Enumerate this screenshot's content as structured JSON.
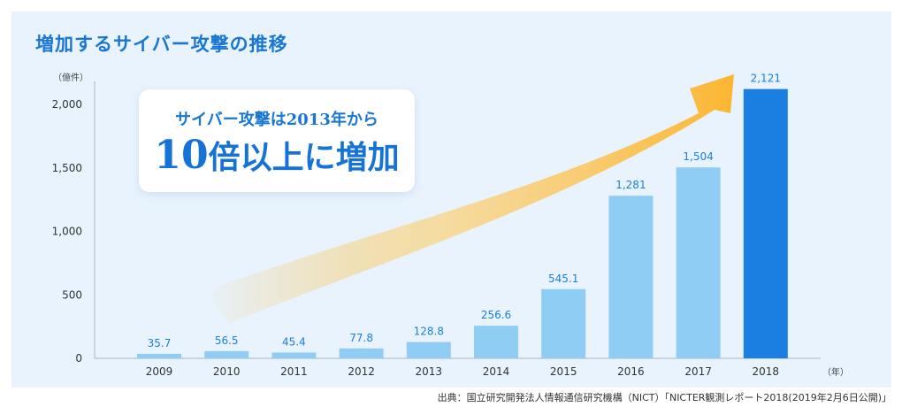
{
  "title": "増加するサイバー攻撃の推移",
  "callout": {
    "line1": "サイバー攻撃は2013年から",
    "line2_number": "10",
    "line2_text": "倍以上に増加"
  },
  "source": "出典：国立研究開発法人情報通信研究機構（NICT）「NICTER観測レポート2018(2019年2月6日公開)」",
  "colors": {
    "bar": "#90cdf4",
    "bar_highlight": "#1a7fe0",
    "label": "#1a7fe0",
    "arrow": "#fbb631"
  },
  "chart_data": {
    "type": "bar",
    "title": "増加するサイバー攻撃の推移",
    "ylabel": "（億件）",
    "xlabel": "（年）",
    "ylim": [
      0,
      2000
    ],
    "yticks": [
      "0",
      "500",
      "1,000",
      "1,500",
      "2,000"
    ],
    "ytick_values": [
      0,
      500,
      1000,
      1500,
      2000
    ],
    "categories": [
      "2009",
      "2010",
      "2011",
      "2012",
      "2013",
      "2014",
      "2015",
      "2016",
      "2017",
      "2018"
    ],
    "values": [
      35.7,
      56.5,
      45.4,
      77.8,
      128.8,
      256.6,
      545.1,
      1281,
      1504,
      2121
    ],
    "data_labels": [
      "35.7",
      "56.5",
      "45.4",
      "77.8",
      "128.8",
      "256.6",
      "545.1",
      "1,281",
      "1,504",
      "2,121"
    ],
    "highlight": "2018",
    "grid": false,
    "annotation": "rising arrow"
  }
}
